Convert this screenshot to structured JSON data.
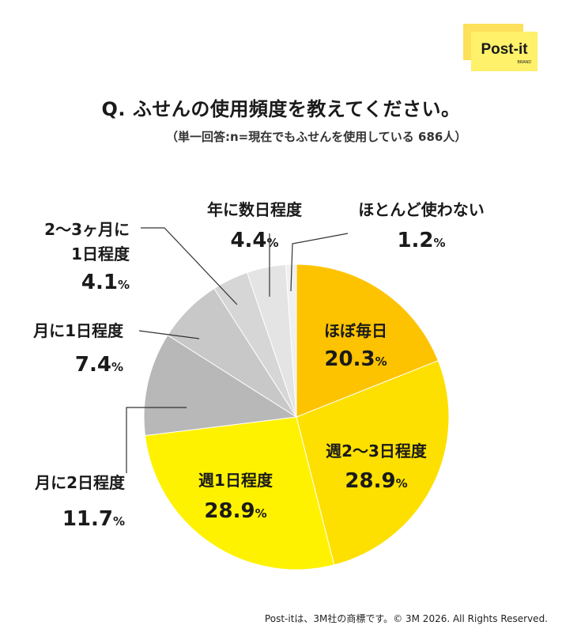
{
  "logo": {
    "text": "Post-it",
    "sub": "BRAND",
    "colors": {
      "back": "#fde05b",
      "front": "#fff16a",
      "text": "#1a1a1a"
    }
  },
  "title": "Q. ふせんの使用頻度を教えてください。",
  "subtitle": "（単一回答:n=現在でもふせんを使用している 686人）",
  "footer": "Post-itは、3M社の商標です。© 3M 2026. All Rights Reserved.",
  "chart_data": {
    "type": "pie",
    "percent_unit": "%",
    "slices": [
      {
        "label": "ほぼ毎日",
        "value": 20.3,
        "color": "#fdc300"
      },
      {
        "label": "週2〜3日程度",
        "value": 28.9,
        "color": "#fde000"
      },
      {
        "label": "週1日程度",
        "value": 28.9,
        "color": "#fff200"
      },
      {
        "label": "月に2日程度",
        "value": 11.7,
        "color": "#b8b8b8"
      },
      {
        "label": "月に1日程度",
        "value": 7.4,
        "color": "#c8c8c8"
      },
      {
        "label": "2〜3ヶ月に\n1日程度",
        "value": 4.1,
        "color": "#d6d6d6"
      },
      {
        "label": "年に数日程度",
        "value": 4.4,
        "color": "#e4e4e4"
      },
      {
        "label": "ほとんど使わない",
        "value": 1.2,
        "color": "#f0f0f0"
      }
    ]
  }
}
